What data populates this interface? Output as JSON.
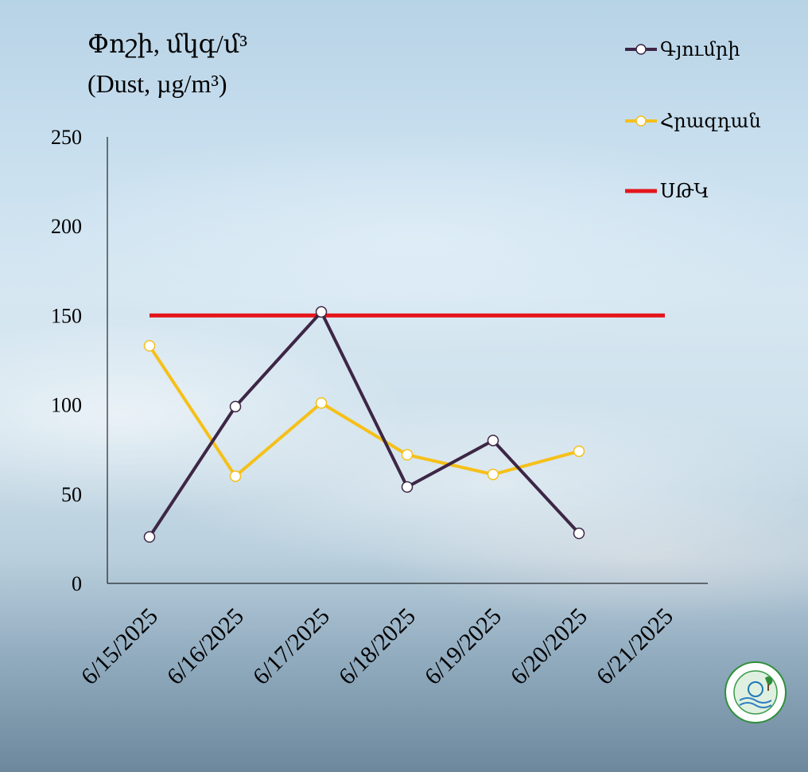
{
  "chart_data": {
    "type": "line",
    "ylabel": "Փոշի, մկգ/մ³\n(Dust, µg/m³)",
    "ylim": [
      0,
      250
    ],
    "yticks": [
      0,
      50,
      100,
      150,
      200,
      250
    ],
    "categories": [
      "6/15/2025",
      "6/16/2025",
      "6/17/2025",
      "6/18/2025",
      "6/19/2025",
      "6/20/2025",
      "6/21/2025"
    ],
    "series": [
      {
        "name": "Գյումրի",
        "color": "#3d2645",
        "marker": "circle",
        "values": [
          26,
          99,
          152,
          54,
          80,
          28,
          null
        ]
      },
      {
        "name": "Հրազդան",
        "color": "#f5c019",
        "marker": "circle",
        "values": [
          133,
          60,
          101,
          72,
          61,
          74,
          null
        ]
      },
      {
        "name": "ՍԹԿ",
        "color": "#e5161c",
        "marker": "none",
        "values": [
          150,
          150,
          150,
          150,
          150,
          150,
          150
        ]
      }
    ],
    "legend_position": "top-right",
    "grid": false
  }
}
